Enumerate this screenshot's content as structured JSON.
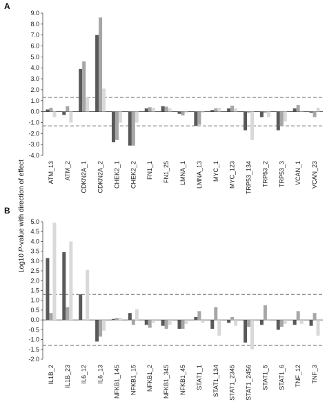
{
  "figure": {
    "ylabel_prefix": "Log10 ",
    "ylabel_italic": "P",
    "ylabel_suffix": "-value with direction of effect"
  },
  "chart_data": [
    {
      "panel": "A",
      "type": "bar",
      "ylim": [
        -4.0,
        9.0
      ],
      "yticks": [
        "9.0",
        "8.0",
        "7.0",
        "6.0",
        "5.0",
        "4.0",
        "3.0",
        "2.0",
        "1.0",
        "0.0",
        "-1.0",
        "-2.0",
        "-3.0",
        "-4.0"
      ],
      "threshold_lines": [
        1.3,
        -1.3
      ],
      "series_colors": [
        "#595959",
        "#a6a6a6",
        "#d9d9d9"
      ],
      "categories": [
        "ATM_13",
        "ATM_2",
        "CDKN2A_1",
        "CDKN2A_2",
        "CHEK2_1",
        "CHEK2_2",
        "FN1_1",
        "FN1_25",
        "LMNA_1",
        "LMNA_13",
        "MYC_1",
        "MYC_123",
        "TRP53_134",
        "TRP53_2",
        "TRP53_3",
        "VCAN_1",
        "VCAN_23"
      ],
      "series": [
        {
          "values": [
            0.2,
            -0.3,
            3.9,
            7.0,
            -2.8,
            -3.1,
            0.3,
            0.5,
            -0.2,
            -1.3,
            0.15,
            0.3,
            -1.7,
            -0.5,
            -1.7,
            0.3,
            -0.1
          ]
        },
        {
          "values": [
            0.35,
            0.5,
            4.6,
            8.6,
            -2.6,
            -3.1,
            0.4,
            0.45,
            -0.35,
            -1.2,
            0.3,
            0.55,
            -0.1,
            -0.1,
            -1.3,
            0.6,
            -0.5
          ]
        },
        {
          "values": [
            -0.5,
            -1.0,
            1.3,
            2.1,
            -1.0,
            -1.0,
            0.35,
            0.3,
            -0.1,
            -0.1,
            0.35,
            0.3,
            -2.6,
            -0.5,
            -0.9,
            0.1,
            0.35
          ]
        }
      ]
    },
    {
      "panel": "B",
      "type": "bar",
      "ylim": [
        -2.0,
        5.0
      ],
      "yticks": [
        "5.0",
        "4.5",
        "4.0",
        "3.5",
        "3.0",
        "2.5",
        "2.0",
        "1.5",
        "1.0",
        "0.5",
        "0.0",
        "-0.5",
        "-1.0",
        "-1.5",
        "-2.0"
      ],
      "threshold_lines": [
        1.3,
        -1.3
      ],
      "series_colors": [
        "#595959",
        "#a6a6a6",
        "#d9d9d9"
      ],
      "categories": [
        "IL1B_2",
        "IL1B_23",
        "IL6_12",
        "IL6_13",
        "NFKB1_145",
        "NFKB1_15",
        "NFKB1_2",
        "NFKB1_345",
        "NFKB1_45",
        "STAT1_1",
        "STAT1_134",
        "STAT1_2345",
        "STAT1_2456",
        "STAT1_5",
        "STAT1_6",
        "TNF_12",
        "TNF_3"
      ],
      "series": [
        {
          "values": [
            3.15,
            3.45,
            1.3,
            -1.1,
            0.05,
            0.35,
            -0.25,
            -0.3,
            -0.45,
            0.15,
            -0.45,
            -0.15,
            -1.15,
            -0.25,
            -0.5,
            -0.25,
            -0.3
          ]
        },
        {
          "values": [
            0.35,
            0.65,
            0.0,
            -0.85,
            0.1,
            -0.25,
            -0.4,
            -0.45,
            -0.45,
            0.45,
            0.65,
            0.15,
            -0.35,
            0.75,
            -0.35,
            0.45,
            0.35
          ]
        },
        {
          "values": [
            4.95,
            4.0,
            2.55,
            -0.55,
            0.1,
            0.55,
            -0.15,
            -0.25,
            -0.2,
            -0.15,
            -0.8,
            -0.3,
            -1.5,
            -0.05,
            -0.2,
            -0.2,
            -0.8
          ]
        }
      ]
    }
  ]
}
